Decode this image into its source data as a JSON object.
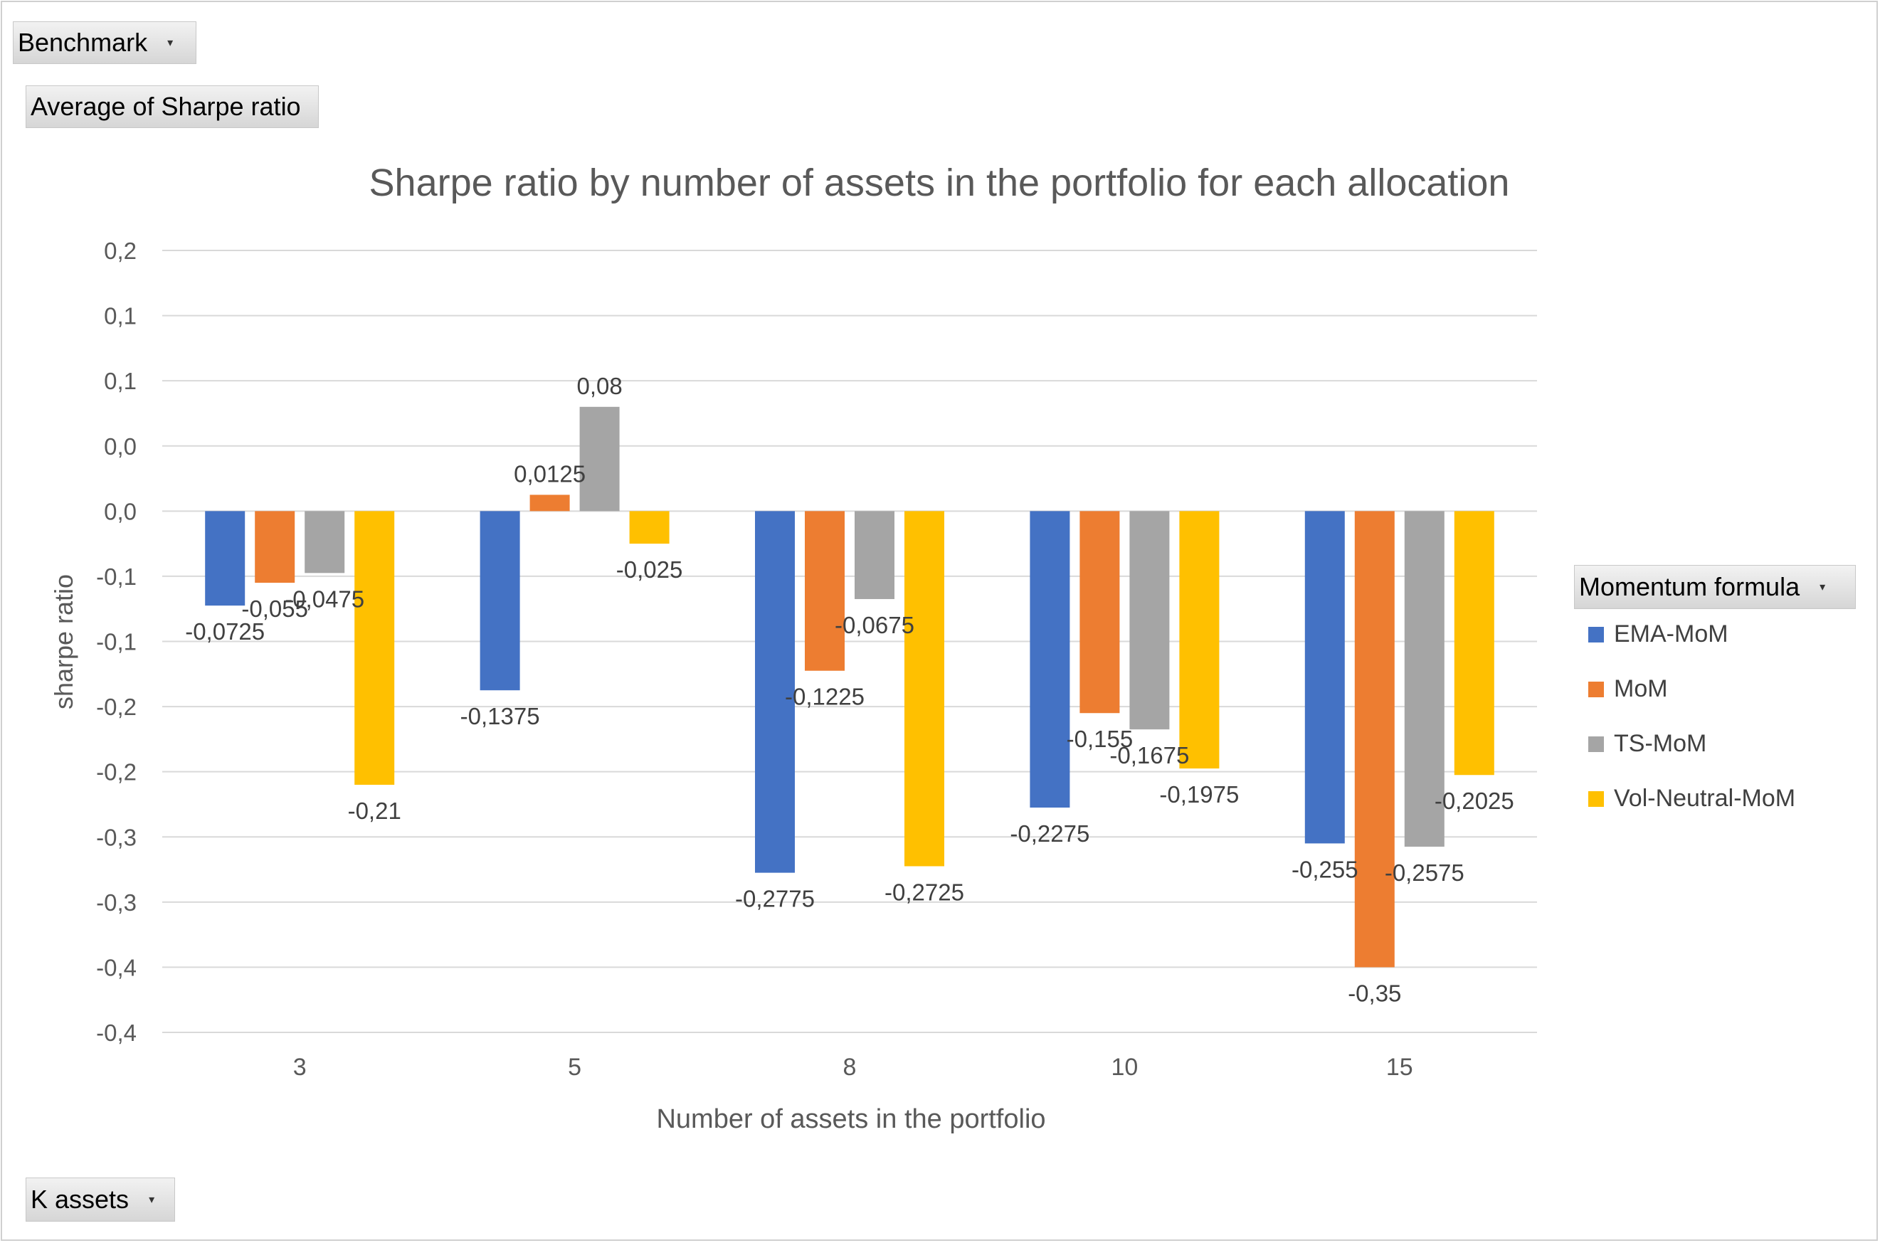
{
  "filters": {
    "benchmark_label": "Benchmark",
    "values_label": "Average of Sharpe ratio",
    "axis_field_label": "K assets",
    "legend_field_label": "Momentum formula"
  },
  "chart_data": {
    "type": "bar",
    "title": "Sharpe ratio by number of assets in the portfolio for each allocation",
    "xlabel": "Number of assets in the portfolio",
    "ylabel": "sharpe ratio",
    "categories": [
      "3",
      "5",
      "8",
      "10",
      "15"
    ],
    "ylim": [
      -0.4,
      0.2
    ],
    "ytick_values": [
      0.2,
      0.15,
      0.1,
      0.05,
      0.0,
      -0.05,
      -0.1,
      -0.15,
      -0.2,
      -0.25,
      -0.3,
      -0.35,
      -0.4
    ],
    "ytick_labels": [
      "0,2",
      "0,1",
      "0,1",
      "0,0",
      "0,0",
      "-0,1",
      "-0,1",
      "-0,2",
      "-0,2",
      "-0,3",
      "-0,3",
      "-0,4",
      "-0,4"
    ],
    "grid": true,
    "legend_position": "right",
    "series": [
      {
        "name": "EMA-MoM",
        "color": "#4472C4",
        "values": [
          -0.0725,
          -0.1375,
          -0.2775,
          -0.2275,
          -0.255
        ],
        "labels": [
          "-0,0725",
          "-0,1375",
          "-0,2775",
          "-0,2275",
          "-0,255"
        ]
      },
      {
        "name": "MoM",
        "color": "#ED7D31",
        "values": [
          -0.055,
          0.0125,
          -0.1225,
          -0.155,
          -0.35
        ],
        "labels": [
          "-0,055",
          "0,0125",
          "-0,1225",
          "-0,155",
          "-0,35"
        ]
      },
      {
        "name": "TS-MoM",
        "color": "#A5A5A5",
        "values": [
          -0.0475,
          0.08,
          -0.0675,
          -0.1675,
          -0.2575
        ],
        "labels": [
          "-0,0475",
          "0,08",
          "-0,0675",
          "-0,1675",
          "-0,2575"
        ]
      },
      {
        "name": "Vol-Neutral-MoM",
        "color": "#FFC000",
        "values": [
          -0.21,
          -0.025,
          -0.2725,
          -0.1975,
          -0.2025
        ],
        "labels": [
          "-0,21",
          "-0,025",
          "-0,2725",
          "-0,1975",
          "-0,2025"
        ]
      }
    ]
  }
}
